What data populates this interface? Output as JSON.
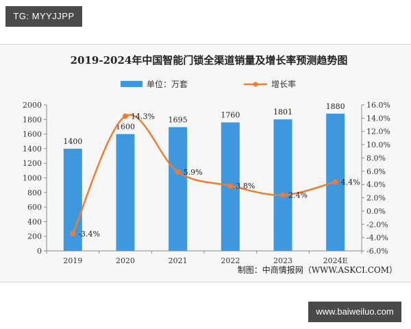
{
  "overlay": {
    "top_left_tag": "TG: MYYJJPP",
    "bottom_right_site": "www.baiweiluo.com"
  },
  "chart_data": {
    "type": "bar",
    "title": "2019-2024年中国智能门锁全渠道销量及增长率预测趋势图",
    "categories": [
      "2019",
      "2020",
      "2021",
      "2022",
      "2023",
      "2024E"
    ],
    "series": [
      {
        "name": "单位：万套",
        "type": "bar",
        "axis": "left",
        "values": [
          1400,
          1600,
          1695,
          1760,
          1801,
          1880
        ],
        "labels": [
          "1400",
          "1600",
          "1695",
          "1760",
          "1801",
          "1880"
        ],
        "color": "#3d98e0"
      },
      {
        "name": "增长率",
        "type": "line",
        "axis": "right",
        "smooth": true,
        "values": [
          -3.4,
          14.3,
          5.9,
          3.8,
          2.4,
          4.4
        ],
        "labels": [
          "-3.4%",
          "14.3%",
          "5.9%",
          "3.8%",
          "2.4%",
          "4.4%"
        ],
        "color": "#ee7d31"
      }
    ],
    "y_left": {
      "min": 0,
      "max": 2000,
      "step": 200,
      "tick_labels": [
        "0",
        "200",
        "400",
        "600",
        "800",
        "1000",
        "1200",
        "1400",
        "1600",
        "1800",
        "2000"
      ]
    },
    "y_right": {
      "min": -6,
      "max": 16,
      "step": 2,
      "tick_labels": [
        "-6.0%",
        "-4.0%",
        "-2.0%",
        "0.0%",
        "2.0%",
        "4.0%",
        "6.0%",
        "8.0%",
        "10.0%",
        "12.0%",
        "14.0%",
        "16.0%"
      ]
    },
    "grid": false,
    "legend_position": "top-center",
    "source": "制图：中商情报网（WWW.ASKCI.COM）"
  }
}
